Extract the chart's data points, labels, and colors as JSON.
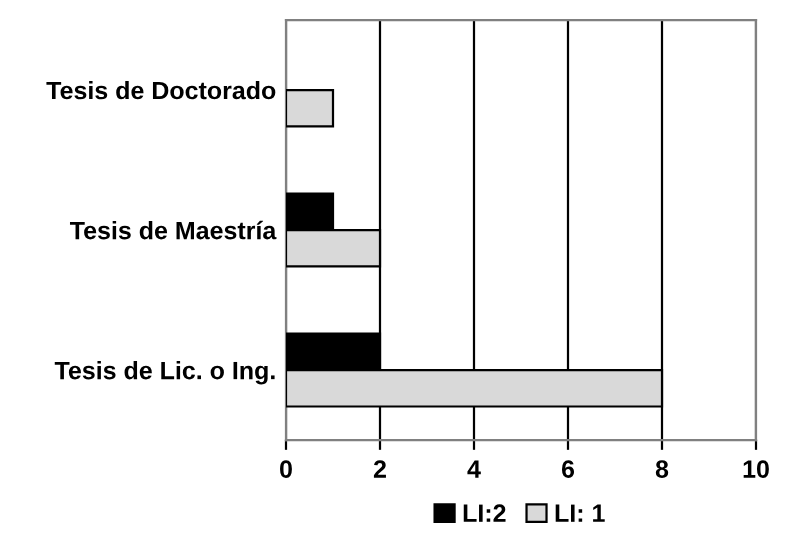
{
  "chart_data": {
    "type": "bar",
    "orientation": "horizontal",
    "categories": [
      "Tesis de Doctorado",
      "Tesis de Maestría",
      "Tesis de Lic. o Ing."
    ],
    "series": [
      {
        "name": "LI:2",
        "color": "#000000",
        "values": [
          null,
          1,
          2
        ]
      },
      {
        "name": "LI: 1",
        "color": "#d9d9d9",
        "values": [
          1,
          2,
          8
        ]
      }
    ],
    "xlim": [
      0,
      10
    ],
    "xticks": [
      0,
      2,
      4,
      6,
      8,
      10
    ],
    "grid": "x",
    "legend": "bottom"
  }
}
